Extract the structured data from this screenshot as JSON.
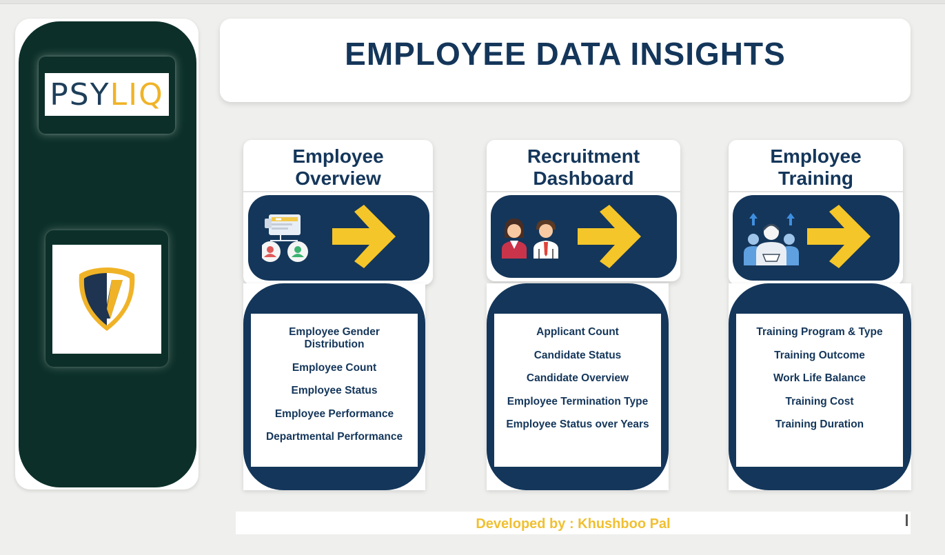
{
  "header": {
    "title": "EMPLOYEE DATA INSIGHTS"
  },
  "sidebar": {
    "logo_text": {
      "part1": "PSY",
      "part2": "LIQ"
    },
    "emblem": "shield-emblem-icon"
  },
  "colors": {
    "navy": "#14365a",
    "sidebar_green": "#0c3029",
    "accent_yellow": "#f0c032",
    "background": "#efefed"
  },
  "cards": [
    {
      "title_line1": "Employee",
      "title_line2": "Overview",
      "icon": "employee-profile-icon",
      "items": [
        "Employee Gender Distribution",
        "Employee Count",
        "Employee Status",
        "Employee Performance",
        "Departmental Performance"
      ]
    },
    {
      "title_line1": "Recruitment",
      "title_line2": "Dashboard",
      "icon": "recruitment-people-icon",
      "items": [
        "Applicant Count",
        "Candidate Status",
        "Candidate Overview",
        "Employee Termination Type",
        "Employee Status over Years"
      ]
    },
    {
      "title_line1": "Employee",
      "title_line2": "Training",
      "icon": "training-group-icon",
      "items": [
        "Training Program & Type",
        "Training Outcome",
        "Work Life Balance",
        "Training Cost",
        "Training Duration"
      ]
    }
  ],
  "footer": {
    "text": "Developed by : Khushboo Pal"
  }
}
